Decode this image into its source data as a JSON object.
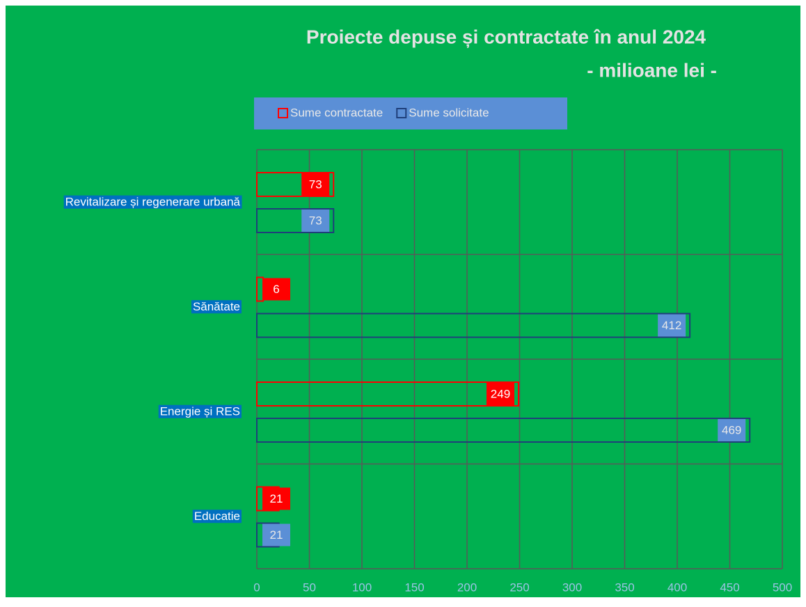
{
  "chart_data": {
    "type": "hbar",
    "title": "Proiecte depuse și contractate în anul 2024",
    "subtitle": "- milioane lei -",
    "categories": [
      "Revitalizare și regenerare urbană",
      "Sănătate",
      "Energie și RES",
      "Educatie"
    ],
    "series": [
      {
        "name": "Sume contractate",
        "color": "#ff0000",
        "values": [
          73,
          6,
          249,
          21
        ]
      },
      {
        "name": "Sume solicitate",
        "color": "#1f3f7a",
        "values": [
          73,
          412,
          469,
          21
        ]
      }
    ],
    "xlim": [
      0,
      500
    ],
    "xticks": [
      0,
      50,
      100,
      150,
      200,
      250,
      300,
      350,
      400,
      450,
      500
    ],
    "grid": true,
    "legend": "top"
  }
}
